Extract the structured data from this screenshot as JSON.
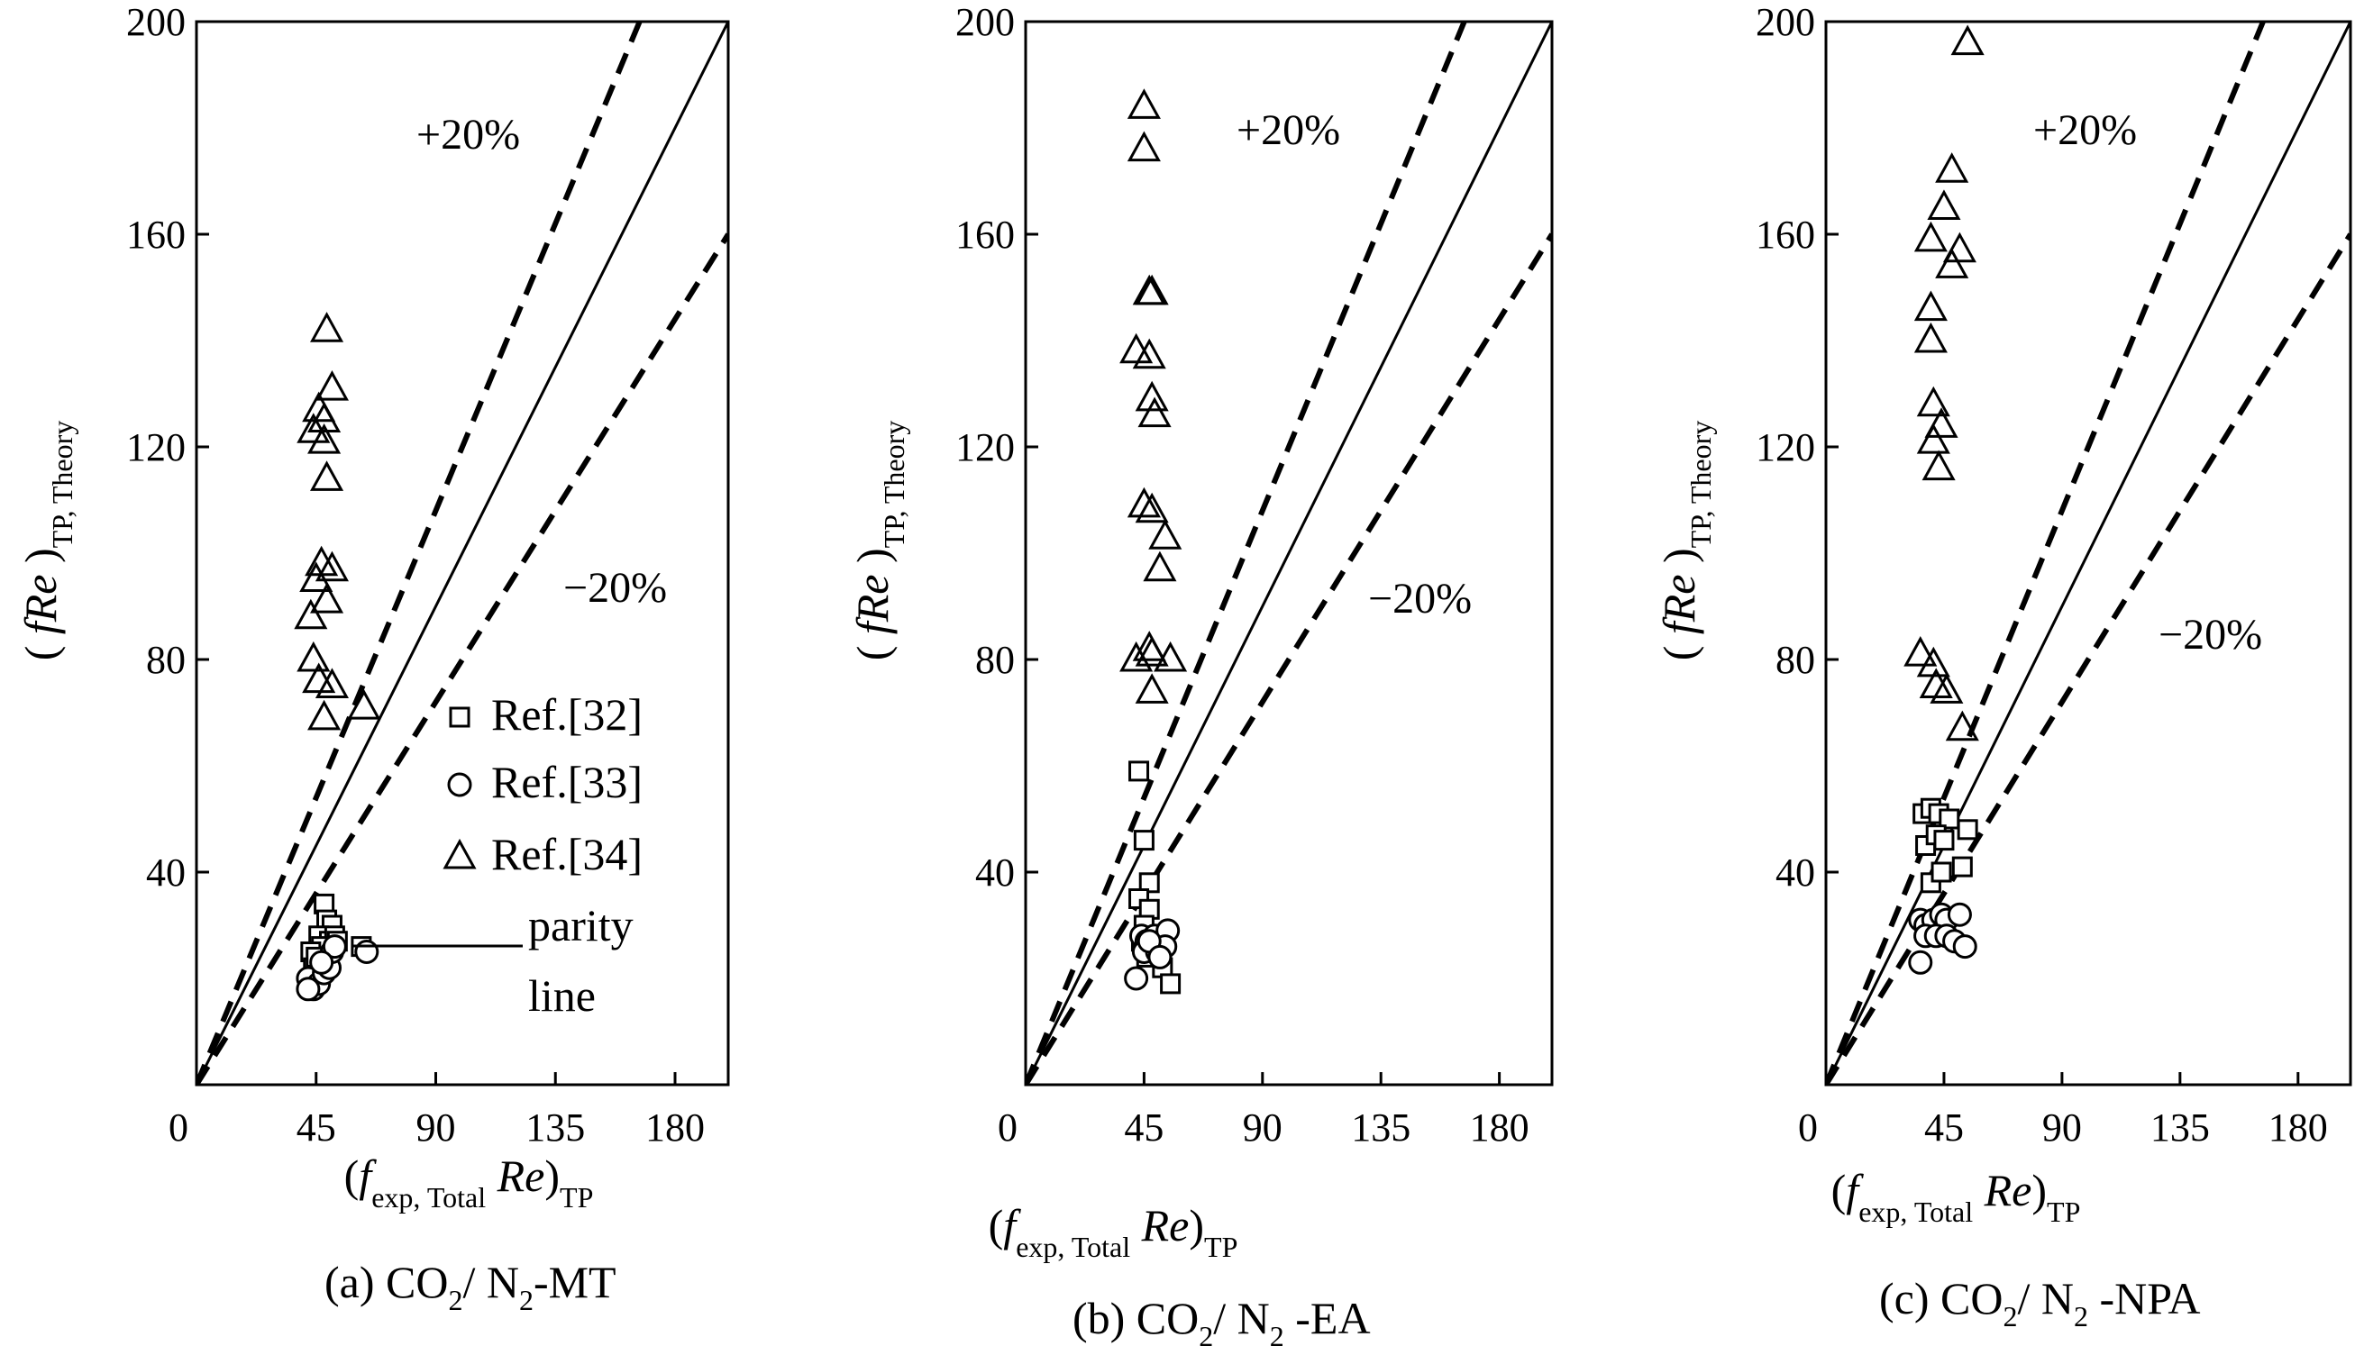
{
  "chart_data": [
    {
      "type": "scatter",
      "caption": {
        "prefix": "(a) CO",
        "sub1": "2",
        "mid": "/ N",
        "sub2": "2",
        "suffix": "-MT"
      },
      "xlim": [
        0,
        200
      ],
      "ylim": [
        0,
        200
      ],
      "xticks": [
        0,
        45,
        90,
        135,
        180
      ],
      "yticks": [
        40,
        80,
        120,
        160,
        200
      ],
      "parity_label": {
        "line1": "parity",
        "line2": "line"
      },
      "band_labels": {
        "plus": "+20%",
        "minus": "−20%"
      },
      "legend": [
        {
          "marker": "square",
          "label": "Ref.[32]"
        },
        {
          "marker": "circle",
          "label": "Ref.[33]"
        },
        {
          "marker": "triangle",
          "label": "Ref.[34]"
        }
      ],
      "series": [
        {
          "name": "Ref.[32]",
          "marker": "square",
          "points": [
            [
              48,
              34
            ],
            [
              49,
              31
            ],
            [
              51,
              30
            ],
            [
              46,
              28
            ],
            [
              50,
              27
            ],
            [
              52,
              28
            ],
            [
              62,
              26
            ],
            [
              47,
              26
            ],
            [
              43,
              25
            ],
            [
              44,
              22
            ],
            [
              49,
              23
            ],
            [
              53,
              27
            ],
            [
              45,
              24
            ]
          ]
        },
        {
          "name": "Ref.[33]",
          "marker": "circle",
          "points": [
            [
              42,
              20
            ],
            [
              44,
              18
            ],
            [
              46,
              19
            ],
            [
              48,
              21
            ],
            [
              50,
              22
            ],
            [
              51,
              25
            ],
            [
              52,
              26
            ],
            [
              64,
              25
            ],
            [
              42,
              18
            ],
            [
              47,
              23
            ]
          ]
        },
        {
          "name": "Ref.[34]",
          "marker": "triangle",
          "points": [
            [
              49,
              142
            ],
            [
              51,
              131
            ],
            [
              46,
              127
            ],
            [
              48,
              125
            ],
            [
              44,
              123
            ],
            [
              48,
              121
            ],
            [
              49,
              114
            ],
            [
              47,
              98
            ],
            [
              51,
              97
            ],
            [
              45,
              95
            ],
            [
              49,
              91
            ],
            [
              43,
              88
            ],
            [
              44,
              80
            ],
            [
              46,
              76
            ],
            [
              51,
              75
            ],
            [
              63,
              71
            ],
            [
              48,
              69
            ]
          ]
        }
      ]
    },
    {
      "type": "scatter",
      "caption": {
        "prefix": "(b) CO",
        "sub1": "2",
        "mid": "/ N",
        "sub2": "2",
        "suffix": " -EA"
      },
      "xlim": [
        0,
        200
      ],
      "ylim": [
        0,
        200
      ],
      "xticks": [
        0,
        45,
        90,
        135,
        180
      ],
      "yticks": [
        40,
        80,
        120,
        160,
        200
      ],
      "band_labels": {
        "plus": "+20%",
        "minus": "−20%"
      },
      "series": [
        {
          "name": "Ref.[32]",
          "marker": "square",
          "points": [
            [
              43,
              59
            ],
            [
              45,
              46
            ],
            [
              47,
              38
            ],
            [
              43,
              35
            ],
            [
              47,
              33
            ],
            [
              45,
              30
            ],
            [
              50,
              28
            ],
            [
              44,
              27
            ],
            [
              46,
              24
            ],
            [
              52,
              22
            ],
            [
              55,
              19
            ]
          ]
        },
        {
          "name": "Ref.[33]",
          "marker": "circle",
          "points": [
            [
              44,
              28
            ],
            [
              46,
              27
            ],
            [
              49,
              28
            ],
            [
              54,
              29
            ],
            [
              45,
              25
            ],
            [
              50,
              25
            ],
            [
              53,
              26
            ],
            [
              42,
              20
            ],
            [
              47,
              27
            ],
            [
              51,
              24
            ]
          ]
        },
        {
          "name": "Ref.[34]",
          "marker": "triangle",
          "points": [
            [
              45,
              184
            ],
            [
              45,
              176
            ],
            [
              48,
              149
            ],
            [
              47,
              149
            ],
            [
              42,
              138
            ],
            [
              47,
              137
            ],
            [
              48,
              129
            ],
            [
              49,
              126
            ],
            [
              45,
              109
            ],
            [
              48,
              108
            ],
            [
              53,
              103
            ],
            [
              51,
              97
            ],
            [
              47,
              82
            ],
            [
              48,
              81
            ],
            [
              42,
              80
            ],
            [
              55,
              80
            ],
            [
              48,
              74
            ]
          ]
        }
      ]
    },
    {
      "type": "scatter",
      "caption": {
        "prefix": "(c) CO",
        "sub1": "2",
        "mid": "/ N",
        "sub2": "2",
        "suffix": " -NPA"
      },
      "xlim": [
        0,
        200
      ],
      "ylim": [
        0,
        200
      ],
      "xticks": [
        0,
        45,
        90,
        135,
        180
      ],
      "yticks": [
        40,
        80,
        120,
        160,
        200
      ],
      "band_labels": {
        "plus": "+20%",
        "minus": "−20%"
      },
      "series": [
        {
          "name": "Ref.[32]",
          "marker": "square",
          "points": [
            [
              37,
              51
            ],
            [
              40,
              52
            ],
            [
              43,
              51
            ],
            [
              47,
              50
            ],
            [
              38,
              45
            ],
            [
              42,
              47
            ],
            [
              45,
              46
            ],
            [
              54,
              48
            ],
            [
              40,
              38
            ],
            [
              44,
              40
            ],
            [
              52,
              41
            ]
          ]
        },
        {
          "name": "Ref.[33]",
          "marker": "circle",
          "points": [
            [
              36,
              31
            ],
            [
              38,
              30
            ],
            [
              41,
              31
            ],
            [
              44,
              32
            ],
            [
              46,
              31
            ],
            [
              51,
              32
            ],
            [
              38,
              28
            ],
            [
              42,
              28
            ],
            [
              46,
              28
            ],
            [
              49,
              27
            ],
            [
              53,
              26
            ],
            [
              36,
              23
            ]
          ]
        },
        {
          "name": "Ref.[34]",
          "marker": "triangle",
          "points": [
            [
              54,
              196
            ],
            [
              48,
              172
            ],
            [
              45,
              165
            ],
            [
              40,
              159
            ],
            [
              51,
              157
            ],
            [
              48,
              154
            ],
            [
              40,
              146
            ],
            [
              40,
              140
            ],
            [
              41,
              128
            ],
            [
              44,
              124
            ],
            [
              41,
              121
            ],
            [
              43,
              116
            ],
            [
              36,
              81
            ],
            [
              41,
              79
            ],
            [
              42,
              75
            ],
            [
              46,
              74
            ],
            [
              52,
              67
            ]
          ]
        }
      ]
    }
  ]
}
